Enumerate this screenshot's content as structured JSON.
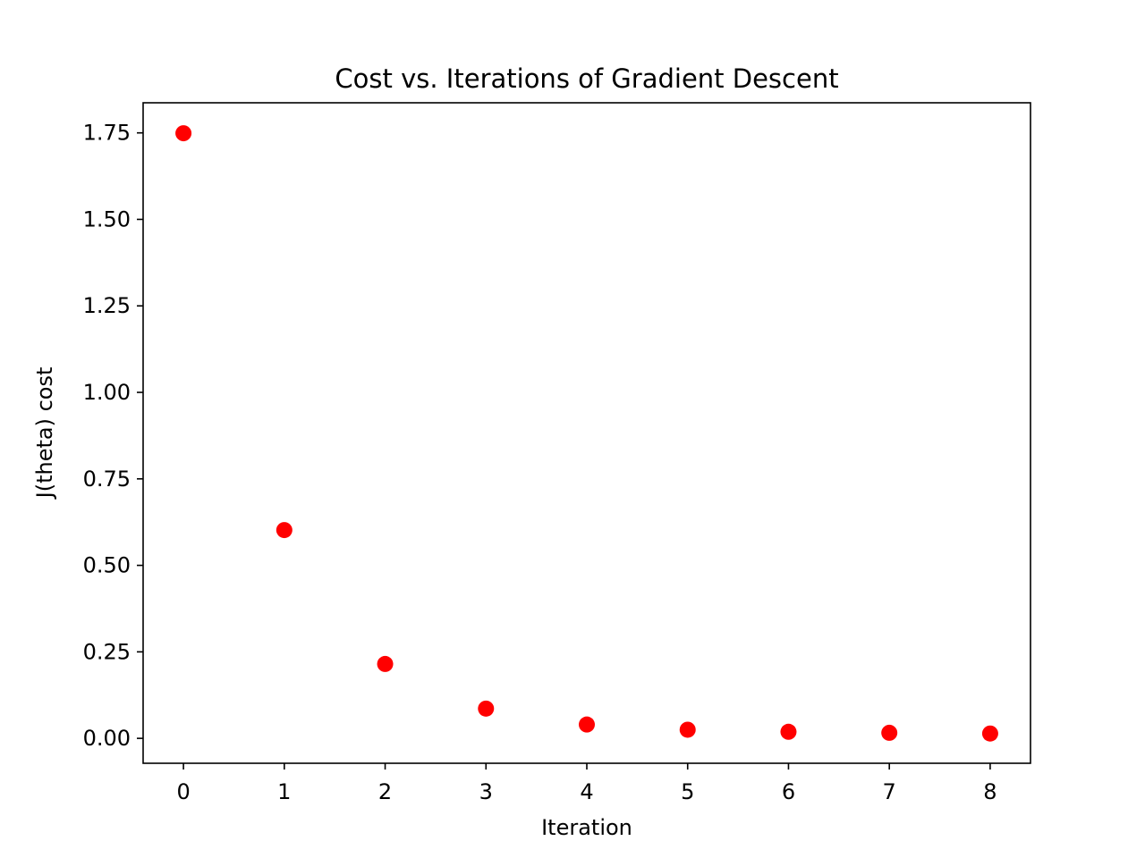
{
  "chart_data": {
    "type": "scatter",
    "title": "Cost vs. Iterations of Gradient Descent",
    "xlabel": "Iteration",
    "ylabel": "J(theta) cost",
    "x": [
      0,
      1,
      2,
      3,
      4,
      5,
      6,
      7,
      8
    ],
    "y": [
      1.749,
      0.602,
      0.215,
      0.086,
      0.04,
      0.025,
      0.019,
      0.016,
      0.014
    ],
    "xlim": [
      -0.4,
      8.4
    ],
    "ylim": [
      -0.072,
      1.837
    ],
    "xticks": [
      0,
      1,
      2,
      3,
      4,
      5,
      6,
      7,
      8
    ],
    "xtick_labels": [
      "0",
      "1",
      "2",
      "3",
      "4",
      "5",
      "6",
      "7",
      "8"
    ],
    "yticks": [
      0.0,
      0.25,
      0.5,
      0.75,
      1.0,
      1.25,
      1.5,
      1.75
    ],
    "ytick_labels": [
      "0.00",
      "0.25",
      "0.50",
      "0.75",
      "1.00",
      "1.25",
      "1.50",
      "1.75"
    ],
    "marker_color": "#ff0000",
    "grid": false
  }
}
